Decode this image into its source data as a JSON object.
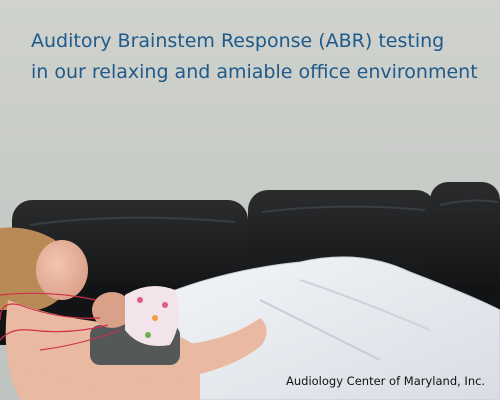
{
  "caption": {
    "line1": "Auditory Brainstem Response (ABR) testing",
    "line2": "in our relaxing and amiable office environment"
  },
  "credit": "Audiology Center of Maryland, Inc.",
  "colors": {
    "caption_text": "#1f5a8a",
    "wall": "#c9ccc8",
    "sofa": "#161718",
    "blanket": "#e8ebf0"
  },
  "scene": {
    "icons": [
      "wall-photo",
      "leather-sofa",
      "reclining-woman",
      "sleeping-infant",
      "abr-electrode-leads",
      "white-blanket"
    ]
  }
}
